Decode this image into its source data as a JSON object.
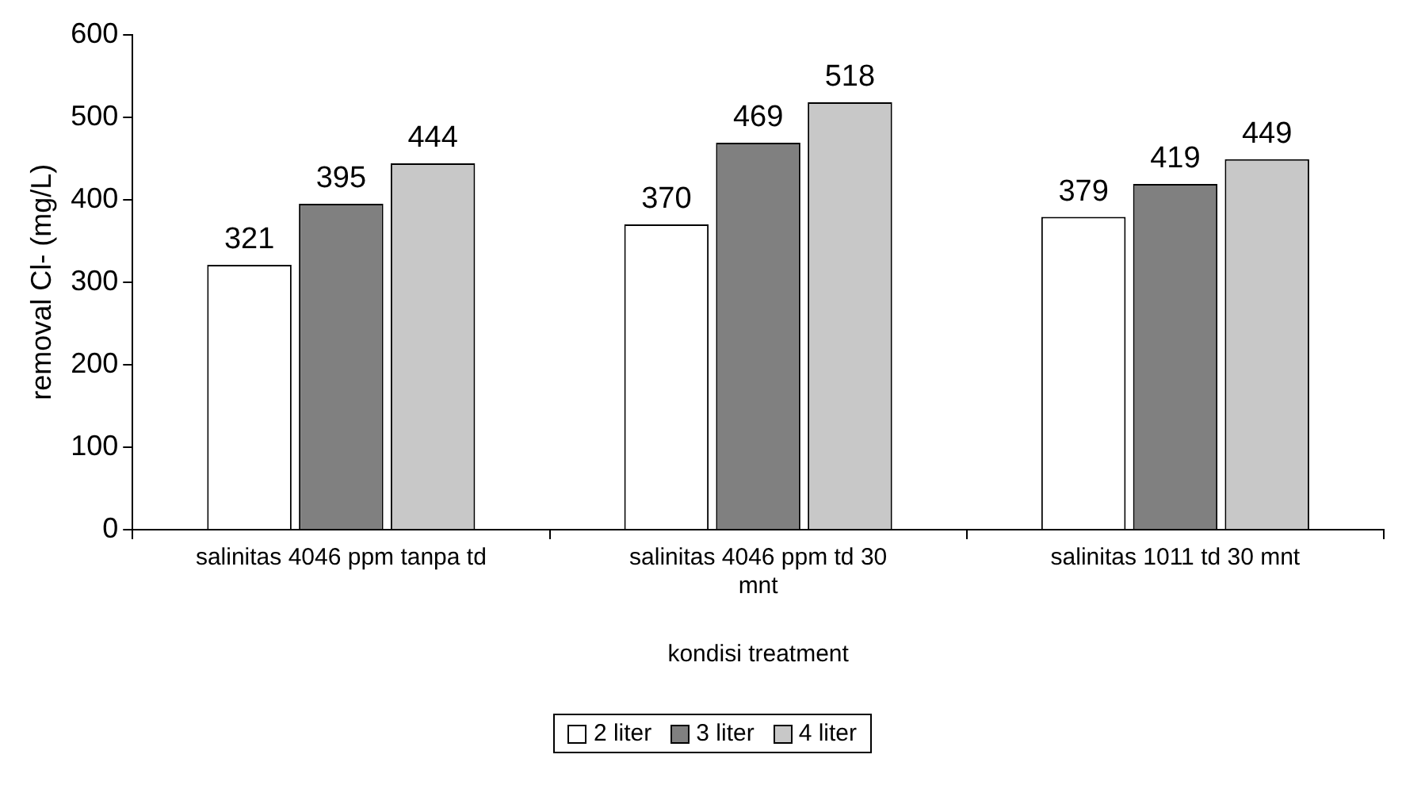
{
  "chart_data": {
    "type": "bar",
    "xlabel": "kondisi treatment",
    "ylabel": "removal Cl- (mg/L)",
    "categories": [
      "salinitas 4046 ppm tanpa td",
      "salinitas 4046 ppm td 30 mnt",
      "salinitas 1011 td 30 mnt"
    ],
    "series": [
      {
        "name": "2 liter",
        "color": "#ffffff",
        "values": [
          321,
          370,
          379
        ]
      },
      {
        "name": "3 liter",
        "color": "#808080",
        "values": [
          395,
          469,
          419
        ]
      },
      {
        "name": "4 liter",
        "color": "#c8c8c8",
        "values": [
          444,
          518,
          449
        ]
      }
    ],
    "ylim": [
      0,
      600
    ],
    "yticks": [
      0,
      100,
      200,
      300,
      400,
      500,
      600
    ],
    "grid": false,
    "legend": "bottom",
    "data_labels": true
  }
}
